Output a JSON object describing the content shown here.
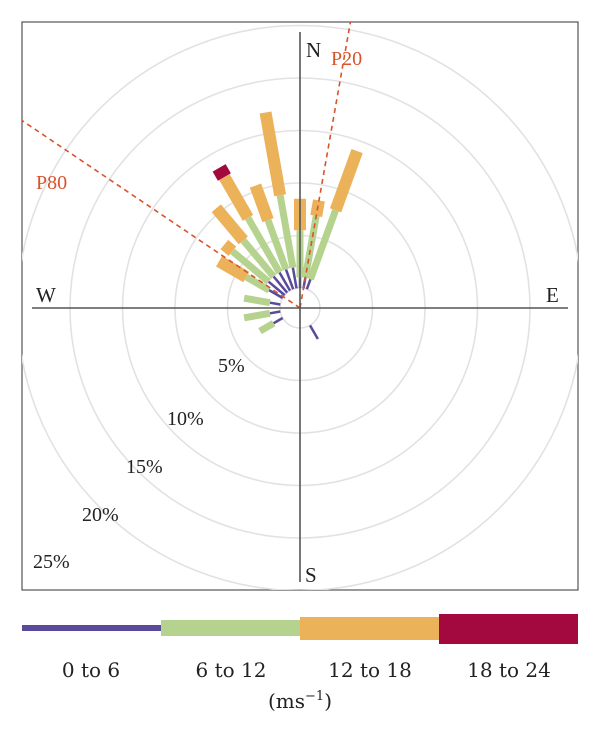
{
  "chart_data": {
    "type": "windrose",
    "compass": {
      "north": "N",
      "south": "S",
      "east": "E",
      "west": "W"
    },
    "rings": [
      {
        "label": "5%",
        "value": 5
      },
      {
        "label": "10%",
        "value": 10
      },
      {
        "label": "15%",
        "value": 15
      },
      {
        "label": "20%",
        "value": 20
      },
      {
        "label": "25%",
        "value": 25
      }
    ],
    "sector_lines": [
      {
        "label": "P20",
        "direction_deg": 10,
        "color": "#d9532c"
      },
      {
        "label": "P80",
        "direction_deg": 304,
        "color": "#d9532c"
      }
    ],
    "speed_bins": [
      {
        "label": "0 to 6",
        "color": "#5b4a9b"
      },
      {
        "label": "6 to 12",
        "color": "#b5d38e"
      },
      {
        "label": "12 to 18",
        "color": "#ebb25a"
      },
      {
        "label": "18 to 24",
        "color": "#a3083f"
      }
    ],
    "unit_label": "(ms",
    "unit_sup": "−1",
    "unit_close": ")",
    "directions_deg": [
      10,
      20,
      150,
      240,
      260,
      280,
      300,
      310,
      320,
      330,
      340,
      350,
      0
    ],
    "series": [
      {
        "name": "0 to 6",
        "values": [
          1.0,
          1.0,
          1.5,
          1.0,
          1.0,
          1.0,
          1.5,
          2.0,
          2.0,
          2.0,
          2.0,
          2.0,
          1.0
        ]
      },
      {
        "name": "6 to 12",
        "values": [
          6.0,
          7.0,
          0.0,
          1.5,
          2.5,
          2.5,
          2.5,
          4.5,
          4.5,
          6.0,
          5.0,
          7.0,
          4.5
        ]
      },
      {
        "name": "12 to 18",
        "values": [
          1.5,
          6.0,
          0.0,
          0.0,
          0.0,
          0.0,
          3.0,
          1.0,
          4.0,
          4.5,
          3.5,
          8.0,
          3.0
        ]
      },
      {
        "name": "18 to 24",
        "values": [
          0.0,
          0.0,
          0.0,
          0.0,
          0.0,
          0.0,
          0.0,
          0.0,
          0.0,
          1.0,
          0.0,
          0.0,
          0.0
        ]
      }
    ]
  }
}
